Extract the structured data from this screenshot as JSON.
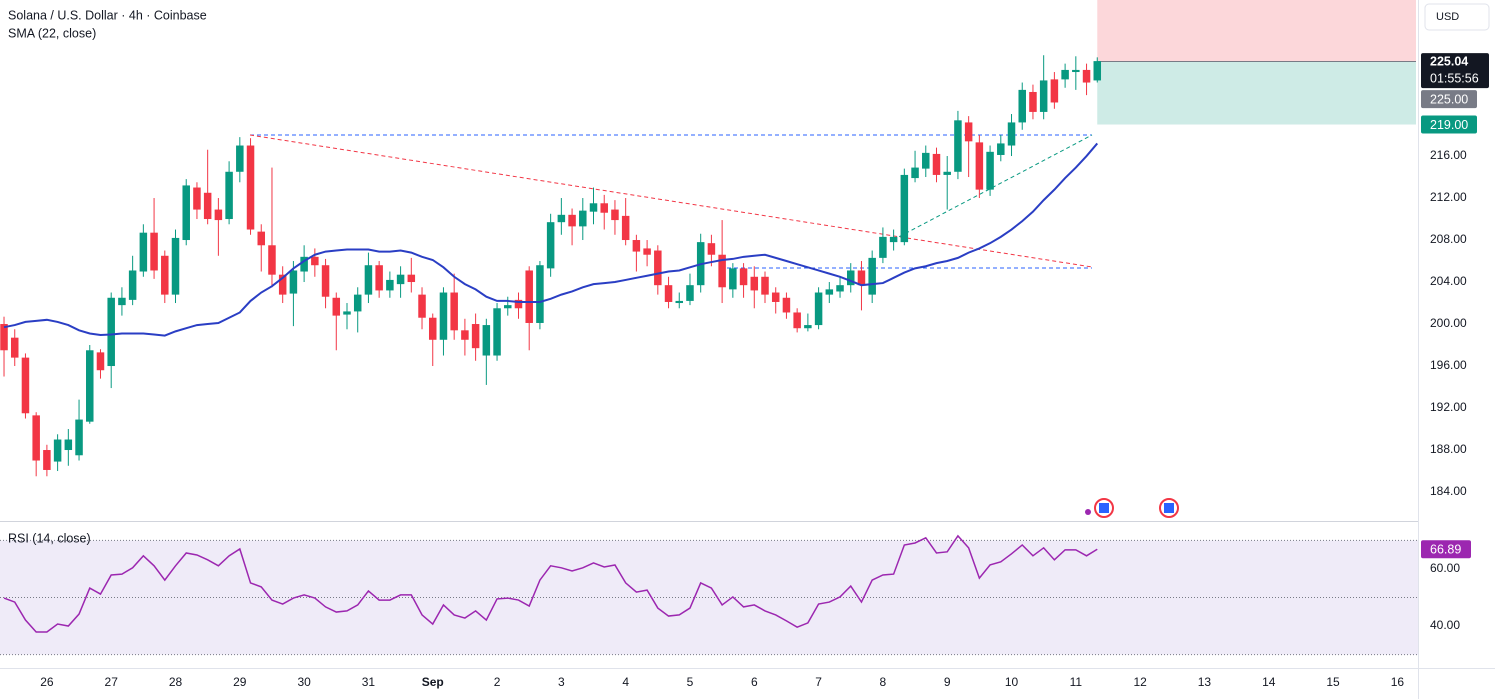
{
  "chart_data": [
    {
      "type": "candlestick",
      "title": "Solana / U.S. Dollar · 4h · Coinbase",
      "currency_label": "USD",
      "countdown": "01:55:56",
      "up_color": "#089981",
      "down_color": "#f23645",
      "x": [
        -16,
        -12,
        -8,
        -4,
        0,
        4,
        8,
        12,
        16,
        20,
        24,
        28,
        32,
        36,
        40,
        44,
        48,
        52,
        56,
        60,
        64,
        68,
        72,
        76,
        80,
        84,
        88,
        92,
        96,
        100,
        104,
        108,
        112,
        116,
        120,
        124,
        128,
        132,
        136,
        140,
        144,
        148,
        152,
        156,
        160,
        164,
        168,
        172,
        176,
        180,
        184,
        188,
        192,
        196,
        200,
        204,
        208,
        212,
        216,
        220,
        224,
        228,
        232,
        236,
        240,
        244,
        248,
        252,
        256,
        260,
        264,
        268,
        272,
        276,
        280,
        284,
        288,
        292,
        296,
        300,
        304,
        308,
        312,
        316,
        320,
        324,
        328,
        332,
        336,
        340,
        344,
        348,
        352,
        356,
        360,
        364,
        368,
        372,
        376,
        380,
        384,
        388,
        392
      ],
      "open": [
        200.0,
        198.7,
        196.8,
        191.3,
        188.0,
        186.9,
        188.0,
        187.5,
        190.7,
        197.3,
        196.0,
        201.8,
        202.3,
        205.0,
        208.7,
        206.5,
        202.8,
        208.0,
        213.0,
        212.5,
        210.9,
        210.0,
        214.5,
        217.0,
        208.8,
        207.5,
        204.7,
        202.9,
        205.0,
        206.4,
        205.6,
        202.5,
        200.9,
        201.2,
        202.8,
        205.6,
        203.2,
        203.8,
        204.7,
        202.8,
        200.6,
        198.5,
        203.0,
        199.4,
        200.0,
        197.0,
        197.0,
        201.5,
        202.3,
        205.1,
        200.1,
        205.3,
        209.7,
        210.4,
        209.3,
        210.7,
        211.5,
        210.9,
        210.3,
        208.0,
        207.2,
        207.0,
        203.7,
        202.0,
        202.2,
        203.7,
        207.7,
        206.6,
        203.3,
        205.3,
        204.5,
        204.5,
        203.0,
        202.5,
        201.1,
        199.6,
        199.9,
        202.8,
        203.1,
        203.7,
        205.1,
        202.8,
        206.3,
        207.8,
        207.8,
        213.9,
        214.8,
        216.2,
        214.2,
        214.5,
        219.2,
        217.3,
        212.8,
        216.1,
        217.0,
        219.2,
        222.1,
        220.2,
        223.3,
        223.3,
        224.0,
        224.2,
        223.2
      ],
      "high": [
        200.7,
        199.5,
        197.2,
        191.6,
        188.5,
        189.5,
        190.0,
        192.8,
        198.0,
        197.6,
        203.0,
        203.5,
        206.5,
        209.5,
        212.0,
        207.0,
        209.0,
        213.8,
        213.5,
        216.6,
        212.0,
        215.5,
        217.8,
        217.7,
        209.5,
        214.9,
        205.5,
        206.0,
        207.5,
        207.2,
        206.2,
        203.0,
        202.0,
        203.5,
        206.8,
        206.0,
        205.0,
        205.5,
        206.3,
        203.5,
        201.0,
        203.5,
        204.8,
        200.5,
        201.0,
        200.5,
        202.0,
        202.6,
        203.0,
        205.5,
        206.0,
        210.5,
        212.0,
        211.0,
        212.0,
        213.0,
        212.3,
        211.8,
        212.0,
        208.5,
        208.0,
        207.5,
        204.5,
        203.0,
        204.8,
        208.6,
        208.5,
        209.9,
        205.8,
        205.8,
        205.5,
        205.0,
        203.5,
        203.0,
        201.5,
        201.0,
        203.5,
        204.0,
        204.5,
        205.8,
        206.0,
        207.0,
        209.2,
        209.0,
        214.8,
        216.5,
        217.0,
        216.8,
        216.0,
        220.3,
        219.8,
        218.0,
        217.0,
        218.0,
        220.0,
        223.0,
        222.8,
        225.6,
        224.0,
        224.8,
        225.5,
        224.8,
        225.4
      ],
      "low": [
        195.0,
        196.0,
        191.0,
        185.5,
        185.5,
        186.0,
        186.5,
        187.0,
        190.5,
        194.8,
        193.9,
        200.8,
        201.8,
        204.5,
        204.3,
        202.0,
        202.0,
        207.5,
        210.0,
        209.5,
        206.5,
        209.5,
        213.5,
        208.5,
        205.0,
        203.5,
        202.0,
        199.8,
        204.0,
        204.5,
        201.5,
        197.5,
        199.5,
        199.2,
        202.0,
        202.5,
        202.5,
        202.5,
        203.0,
        199.5,
        196.0,
        197.0,
        198.5,
        197.0,
        196.5,
        194.2,
        196.5,
        200.8,
        200.5,
        197.5,
        199.5,
        204.5,
        208.5,
        207.5,
        208.0,
        209.5,
        209.0,
        208.5,
        207.5,
        205.0,
        205.5,
        202.8,
        201.5,
        201.5,
        201.8,
        203.0,
        205.5,
        202.0,
        202.5,
        202.5,
        201.5,
        202.0,
        201.0,
        200.5,
        199.2,
        199.3,
        199.5,
        202.0,
        202.5,
        203.0,
        201.3,
        202.0,
        205.8,
        207.0,
        207.5,
        213.5,
        214.0,
        213.5,
        210.9,
        213.8,
        214.0,
        212.0,
        212.2,
        215.5,
        216.0,
        218.5,
        219.5,
        219.5,
        220.5,
        222.5,
        222.3,
        221.8,
        223.0
      ],
      "close": [
        197.5,
        196.8,
        191.5,
        187.0,
        186.1,
        189.0,
        189.0,
        190.9,
        197.5,
        195.6,
        202.5,
        202.5,
        205.1,
        208.7,
        205.1,
        202.8,
        208.2,
        213.2,
        210.9,
        210.0,
        209.9,
        214.5,
        217.0,
        209.0,
        207.5,
        204.7,
        202.8,
        205.1,
        206.4,
        205.6,
        202.6,
        200.8,
        201.2,
        202.8,
        205.6,
        203.2,
        204.2,
        204.7,
        204.0,
        200.6,
        198.5,
        203.0,
        199.4,
        198.5,
        197.7,
        199.9,
        201.5,
        201.8,
        201.5,
        200.1,
        205.6,
        209.7,
        210.4,
        209.3,
        210.8,
        211.5,
        210.6,
        209.9,
        208.0,
        206.9,
        206.6,
        203.7,
        202.1,
        202.2,
        203.7,
        207.8,
        206.6,
        203.5,
        205.3,
        203.7,
        203.2,
        202.8,
        202.1,
        201.1,
        199.6,
        199.9,
        203.0,
        203.3,
        203.7,
        205.1,
        203.7,
        206.3,
        208.3,
        208.3,
        214.2,
        214.9,
        216.3,
        214.2,
        214.5,
        219.4,
        217.4,
        212.8,
        216.4,
        217.2,
        219.2,
        222.3,
        220.2,
        223.2,
        221.1,
        224.2,
        224.2,
        223.0,
        225.04
      ],
      "series": [
        {
          "name": "SMA (22, close)",
          "color": "#2a3ec4",
          "values": [
            199.7,
            199.9,
            200.2,
            200.3,
            200.4,
            200.2,
            199.9,
            199.4,
            199.1,
            198.95,
            199.0,
            199.1,
            199.1,
            199.1,
            199.0,
            198.9,
            199.3,
            199.6,
            199.9,
            200.0,
            200.1,
            200.6,
            201.1,
            202.2,
            203.0,
            203.6,
            204.4,
            205.3,
            206.0,
            206.6,
            206.9,
            207.0,
            207.1,
            207.1,
            207.1,
            206.9,
            206.9,
            207.0,
            206.8,
            206.4,
            206.1,
            205.4,
            204.5,
            203.8,
            203.3,
            202.6,
            202.2,
            202.2,
            202.1,
            202.1,
            202.1,
            202.4,
            202.8,
            203.1,
            203.5,
            203.8,
            203.9,
            204.0,
            204.2,
            204.4,
            204.6,
            204.8,
            205.0,
            205.1,
            205.4,
            205.7,
            205.9,
            206.1,
            206.2,
            206.4,
            206.5,
            206.6,
            206.3,
            206.0,
            205.7,
            205.4,
            205.1,
            204.8,
            204.5,
            204.1,
            203.7,
            203.8,
            203.9,
            204.4,
            204.9,
            205.3,
            205.5,
            205.8,
            206.0,
            206.3,
            206.8,
            207.2,
            207.7,
            208.3,
            209.0,
            209.8,
            210.7,
            211.8,
            212.8,
            213.9,
            214.9,
            216.0,
            217.2
          ]
        }
      ],
      "position": {
        "entry": {
          "value": 225,
          "label": "225.00"
        },
        "target": {
          "value": 219,
          "label": "219.00"
        },
        "entry_color": "#787b86",
        "target_color": "#089981"
      },
      "xlim": [
        -17.5,
        511.7
      ],
      "xticks": [
        {
          "value": 0,
          "label": "26"
        },
        {
          "value": 24,
          "label": "27"
        },
        {
          "value": 48,
          "label": "28"
        },
        {
          "value": 72,
          "label": "29"
        },
        {
          "value": 96,
          "label": "30"
        },
        {
          "value": 120,
          "label": "31"
        },
        {
          "value": 144,
          "label": "Sep"
        },
        {
          "value": 168,
          "label": "2"
        },
        {
          "value": 192,
          "label": "3"
        },
        {
          "value": 216,
          "label": "4"
        },
        {
          "value": 240,
          "label": "5"
        },
        {
          "value": 264,
          "label": "6"
        },
        {
          "value": 288,
          "label": "7"
        },
        {
          "value": 312,
          "label": "8"
        },
        {
          "value": 336,
          "label": "9"
        },
        {
          "value": 360,
          "label": "10"
        },
        {
          "value": 384,
          "label": "11"
        },
        {
          "value": 408,
          "label": "12"
        },
        {
          "value": 432,
          "label": "13"
        },
        {
          "value": 456,
          "label": "14"
        },
        {
          "value": 480,
          "label": "15"
        },
        {
          "value": 504,
          "label": "16"
        }
      ],
      "ylim": [
        181.24,
        230.86
      ],
      "yticks": [
        {
          "value": 184,
          "label": "184.00"
        },
        {
          "value": 188,
          "label": "188.00"
        },
        {
          "value": 192,
          "label": "192.00"
        },
        {
          "value": 196,
          "label": "196.00"
        },
        {
          "value": 200,
          "label": "200.00"
        },
        {
          "value": 204,
          "label": "204.00"
        },
        {
          "value": 208,
          "label": "208.00"
        },
        {
          "value": 212,
          "label": "212.00"
        },
        {
          "value": 216,
          "label": "216.00"
        }
      ],
      "grid": false
    },
    {
      "type": "line",
      "series": [
        {
          "name": "RSI (14, close)",
          "color": "#9c27b0",
          "values": [
            49.8,
            48.4,
            42.1,
            37.9,
            37.9,
            40.7,
            40.0,
            44.2,
            53.3,
            51.2,
            57.9,
            58.2,
            60.4,
            64.6,
            61.1,
            56.1,
            61.1,
            65.6,
            64.9,
            63.2,
            61.1,
            64.6,
            67.0,
            55.1,
            53.7,
            49.1,
            47.7,
            49.8,
            50.9,
            49.8,
            46.7,
            44.9,
            45.3,
            47.4,
            52.3,
            49.1,
            49.1,
            50.9,
            50.9,
            43.9,
            40.7,
            47.4,
            43.9,
            42.8,
            45.3,
            42.1,
            49.5,
            49.8,
            49.1,
            47.0,
            56.1,
            61.1,
            60.4,
            59.3,
            60.4,
            62.1,
            60.7,
            61.4,
            55.1,
            51.9,
            52.6,
            46.3,
            43.5,
            43.9,
            46.3,
            55.1,
            53.3,
            47.4,
            50.2,
            46.7,
            47.4,
            45.3,
            43.9,
            41.8,
            39.6,
            41.1,
            47.7,
            48.4,
            50.2,
            54.0,
            48.4,
            56.1,
            57.9,
            58.2,
            68.4,
            69.1,
            70.9,
            65.6,
            66.0,
            71.6,
            67.4,
            56.8,
            61.4,
            62.5,
            65.3,
            68.4,
            64.6,
            67.4,
            63.2,
            66.7,
            66.7,
            64.6,
            66.89
          ]
        }
      ],
      "band": [
        30,
        70
      ],
      "midline": 50,
      "ylim": [
        25.3,
        76.8
      ],
      "yticks": [
        {
          "value": 40,
          "label": "40.00"
        },
        {
          "value": 60,
          "label": "60.00"
        }
      ]
    }
  ]
}
